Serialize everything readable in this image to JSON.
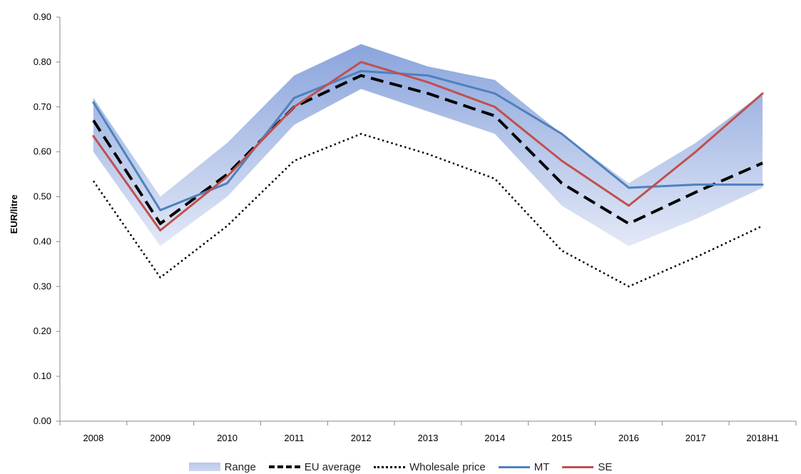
{
  "chart_data": {
    "type": "line",
    "title": "",
    "xlabel": "",
    "ylabel": "EUR/litre",
    "ylim": [
      0,
      0.9
    ],
    "yticks": [
      "0.00",
      "0.10",
      "0.20",
      "0.30",
      "0.40",
      "0.50",
      "0.60",
      "0.70",
      "0.80",
      "0.90"
    ],
    "categories": [
      "2008",
      "2009",
      "2010",
      "2011",
      "2012",
      "2013",
      "2014",
      "2015",
      "2016",
      "2017",
      "2018H1"
    ],
    "range": {
      "name": "Range",
      "low": [
        0.6,
        0.39,
        0.5,
        0.66,
        0.74,
        0.69,
        0.64,
        0.48,
        0.39,
        0.45,
        0.52
      ],
      "high": [
        0.72,
        0.5,
        0.62,
        0.77,
        0.84,
        0.79,
        0.76,
        0.64,
        0.53,
        0.62,
        0.73
      ],
      "color": "#8fa8de"
    },
    "series": [
      {
        "name": "EU average",
        "style": "dashed",
        "color": "#000000",
        "values": [
          0.67,
          0.44,
          0.55,
          0.7,
          0.77,
          0.73,
          0.68,
          0.53,
          0.44,
          0.51,
          0.575
        ]
      },
      {
        "name": "Wholesale price",
        "style": "dotted",
        "color": "#000000",
        "values": [
          0.535,
          0.32,
          0.435,
          0.58,
          0.64,
          0.595,
          0.54,
          0.38,
          0.3,
          0.365,
          0.435
        ]
      },
      {
        "name": "MT",
        "style": "solid",
        "color": "#4f81bd",
        "values": [
          0.71,
          0.47,
          0.53,
          0.72,
          0.78,
          0.77,
          0.73,
          0.64,
          0.52,
          0.527,
          0.527
        ]
      },
      {
        "name": "SE",
        "style": "solid",
        "color": "#c0504d",
        "values": [
          0.635,
          0.425,
          0.545,
          0.7,
          0.8,
          0.755,
          0.7,
          0.58,
          0.48,
          0.6,
          0.73
        ]
      }
    ],
    "grid": false,
    "legend_position": "bottom"
  }
}
